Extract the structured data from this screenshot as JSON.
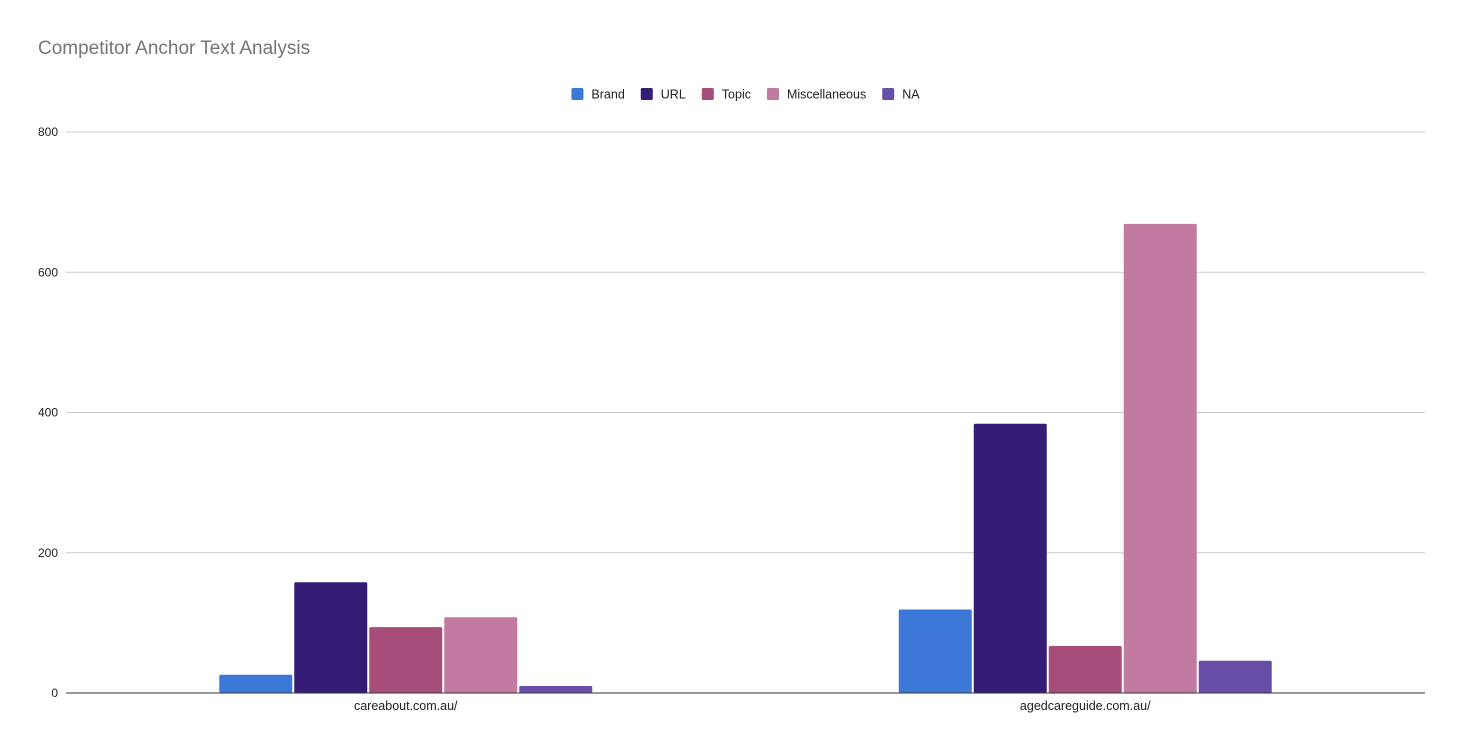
{
  "chart_data": {
    "type": "bar",
    "title": "Competitor Anchor Text Analysis",
    "xlabel": "",
    "ylabel": "",
    "categories": [
      "careabout.com.au/",
      "agedcareguide.com.au/"
    ],
    "series": [
      {
        "name": "Brand",
        "color": "#3c78d8",
        "values": [
          26,
          119
        ]
      },
      {
        "name": "URL",
        "color": "#351c75",
        "values": [
          158,
          384
        ]
      },
      {
        "name": "Topic",
        "color": "#a64d79",
        "values": [
          94,
          67
        ]
      },
      {
        "name": "Miscellaneous",
        "color": "#c27ba0",
        "values": [
          108,
          669
        ]
      },
      {
        "name": "NA",
        "color": "#674ea7",
        "values": [
          10,
          46
        ]
      }
    ],
    "ylim": [
      0,
      800
    ],
    "yticks": [
      0,
      200,
      400,
      600,
      800
    ],
    "grid": true,
    "legend_position": "top"
  }
}
